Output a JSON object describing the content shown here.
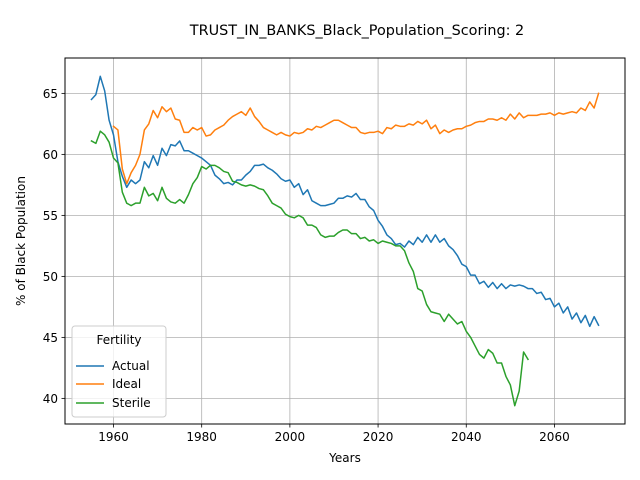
{
  "chart_data": {
    "type": "line",
    "title": "TRUST_IN_BANKS_Black_Population_Scoring: 2",
    "xlabel": "Years",
    "ylabel": "% of Black Population",
    "xlim": [
      1949,
      2076
    ],
    "ylim": [
      37.9,
      67.9
    ],
    "xticks": [
      1960,
      1980,
      2000,
      2020,
      2040,
      2060
    ],
    "yticks": [
      40,
      45,
      50,
      55,
      60,
      65
    ],
    "grid": true,
    "legend": {
      "title": "Fertility",
      "placement": "lower-left"
    },
    "series": [
      {
        "name": "Actual",
        "color": "#1f77b4",
        "x": [
          1955,
          1956,
          1957,
          1958,
          1959,
          1960,
          1961,
          1962,
          1963,
          1964,
          1965,
          1966,
          1967,
          1968,
          1969,
          1970,
          1971,
          1972,
          1973,
          1974,
          1975,
          1976,
          1977,
          1978,
          1979,
          1980,
          1981,
          1982,
          1983,
          1984,
          1985,
          1986,
          1987,
          1988,
          1989,
          1990,
          1991,
          1992,
          1993,
          1994,
          1995,
          1996,
          1997,
          1998,
          1999,
          2000,
          2001,
          2002,
          2003,
          2004,
          2005,
          2006,
          2007,
          2008,
          2009,
          2010,
          2011,
          2012,
          2013,
          2014,
          2015,
          2016,
          2017,
          2018,
          2019,
          2020,
          2021,
          2022,
          2023,
          2024,
          2025,
          2026,
          2027,
          2028,
          2029,
          2030,
          2031,
          2032,
          2033,
          2034,
          2035,
          2036,
          2037,
          2038,
          2039,
          2040,
          2041,
          2042,
          2043,
          2044,
          2045,
          2046,
          2047,
          2048,
          2049,
          2050,
          2051,
          2052,
          2053,
          2054,
          2055,
          2056,
          2057,
          2058,
          2059,
          2060,
          2061,
          2062,
          2063,
          2064,
          2065,
          2066,
          2067,
          2068,
          2069,
          2070
        ],
        "values": [
          64.5,
          64.9,
          66.4,
          65.2,
          62.8,
          61.6,
          59.4,
          58.2,
          57.3,
          57.9,
          57.6,
          57.9,
          59.4,
          58.9,
          59.9,
          59.1,
          60.5,
          59.9,
          60.8,
          60.7,
          61.1,
          60.3,
          60.3,
          60.1,
          59.9,
          59.7,
          59.4,
          59.1,
          58.3,
          58.0,
          57.6,
          57.7,
          57.5,
          57.9,
          57.9,
          58.3,
          58.6,
          59.1,
          59.1,
          59.2,
          58.9,
          58.7,
          58.4,
          58.0,
          57.8,
          57.9,
          57.3,
          57.6,
          56.7,
          57.1,
          56.2,
          56.0,
          55.8,
          55.8,
          55.9,
          56.0,
          56.4,
          56.4,
          56.6,
          56.5,
          56.8,
          56.3,
          56.3,
          55.7,
          55.4,
          54.6,
          54.1,
          53.4,
          53.1,
          52.6,
          52.7,
          52.4,
          52.9,
          52.6,
          53.2,
          52.8,
          53.4,
          52.8,
          53.4,
          52.8,
          53.1,
          52.5,
          52.2,
          51.7,
          51.0,
          50.8,
          50.1,
          50.1,
          49.4,
          49.6,
          49.1,
          49.5,
          49.0,
          49.4,
          49.0,
          49.3,
          49.2,
          49.3,
          49.2,
          49.0,
          49.0,
          48.6,
          48.7,
          48.1,
          48.2,
          47.5,
          47.8,
          47.0,
          47.5,
          46.5,
          47.0,
          46.2,
          46.8,
          45.9,
          46.7,
          46.0
        ]
      },
      {
        "name": "Ideal",
        "color": "#ff7f0e",
        "x": [
          1960,
          1961,
          1962,
          1963,
          1964,
          1965,
          1966,
          1967,
          1968,
          1969,
          1970,
          1971,
          1972,
          1973,
          1974,
          1975,
          1976,
          1977,
          1978,
          1979,
          1980,
          1981,
          1982,
          1983,
          1984,
          1985,
          1986,
          1987,
          1988,
          1989,
          1990,
          1991,
          1992,
          1993,
          1994,
          1995,
          1996,
          1997,
          1998,
          1999,
          2000,
          2001,
          2002,
          2003,
          2004,
          2005,
          2006,
          2007,
          2008,
          2009,
          2010,
          2011,
          2012,
          2013,
          2014,
          2015,
          2016,
          2017,
          2018,
          2019,
          2020,
          2021,
          2022,
          2023,
          2024,
          2025,
          2026,
          2027,
          2028,
          2029,
          2030,
          2031,
          2032,
          2033,
          2034,
          2035,
          2036,
          2037,
          2038,
          2039,
          2040,
          2041,
          2042,
          2043,
          2044,
          2045,
          2046,
          2047,
          2048,
          2049,
          2050,
          2051,
          2052,
          2053,
          2054,
          2055,
          2056,
          2057,
          2058,
          2059,
          2060,
          2061,
          2062,
          2063,
          2064,
          2065,
          2066,
          2067,
          2068,
          2069,
          2070
        ],
        "values": [
          62.3,
          62.0,
          58.8,
          57.6,
          58.5,
          59.1,
          60.0,
          62.0,
          62.5,
          63.6,
          63.0,
          63.9,
          63.5,
          63.8,
          62.9,
          62.8,
          61.8,
          61.8,
          62.2,
          62.0,
          62.2,
          61.5,
          61.6,
          62.0,
          62.2,
          62.4,
          62.8,
          63.1,
          63.3,
          63.5,
          63.2,
          63.8,
          63.1,
          62.7,
          62.2,
          62.0,
          61.8,
          61.6,
          61.8,
          61.6,
          61.5,
          61.8,
          61.7,
          61.8,
          62.1,
          62.0,
          62.3,
          62.2,
          62.4,
          62.6,
          62.8,
          62.8,
          62.6,
          62.4,
          62.2,
          62.2,
          61.8,
          61.7,
          61.8,
          61.8,
          61.9,
          61.7,
          62.2,
          62.1,
          62.4,
          62.3,
          62.3,
          62.5,
          62.4,
          62.7,
          62.5,
          62.8,
          62.1,
          62.4,
          61.7,
          62.0,
          61.8,
          62.0,
          62.1,
          62.1,
          62.3,
          62.4,
          62.6,
          62.7,
          62.7,
          62.9,
          62.9,
          62.8,
          63.0,
          62.8,
          63.3,
          62.9,
          63.4,
          63.0,
          63.2,
          63.2,
          63.2,
          63.3,
          63.3,
          63.4,
          63.2,
          63.4,
          63.3,
          63.4,
          63.5,
          63.4,
          63.8,
          63.6,
          64.3,
          63.8,
          65.0
        ]
      },
      {
        "name": "Sterile",
        "color": "#2ca02c",
        "x": [
          1955,
          1956,
          1957,
          1958,
          1959,
          1960,
          1961,
          1962,
          1963,
          1964,
          1965,
          1966,
          1967,
          1968,
          1969,
          1970,
          1971,
          1972,
          1973,
          1974,
          1975,
          1976,
          1977,
          1978,
          1979,
          1980,
          1981,
          1982,
          1983,
          1984,
          1985,
          1986,
          1987,
          1988,
          1989,
          1990,
          1991,
          1992,
          1993,
          1994,
          1995,
          1996,
          1997,
          1998,
          1999,
          2000,
          2001,
          2002,
          2003,
          2004,
          2005,
          2006,
          2007,
          2008,
          2009,
          2010,
          2011,
          2012,
          2013,
          2014,
          2015,
          2016,
          2017,
          2018,
          2019,
          2020,
          2021,
          2022,
          2023,
          2024,
          2025,
          2026,
          2027,
          2028,
          2029,
          2030,
          2031,
          2032,
          2033,
          2034,
          2035,
          2036,
          2037,
          2038,
          2039,
          2040,
          2041,
          2042,
          2043,
          2044,
          2045,
          2046,
          2047,
          2048,
          2049,
          2050,
          2051,
          2052,
          2053,
          2054
        ],
        "values": [
          61.1,
          60.9,
          61.9,
          61.6,
          61.0,
          59.7,
          59.3,
          56.9,
          56.0,
          55.8,
          56.0,
          56.0,
          57.3,
          56.6,
          56.8,
          56.2,
          57.3,
          56.4,
          56.1,
          56.0,
          56.3,
          56.0,
          56.7,
          57.6,
          58.1,
          59.0,
          58.8,
          59.1,
          59.1,
          58.9,
          58.6,
          58.5,
          57.8,
          57.7,
          57.5,
          57.4,
          57.5,
          57.4,
          57.2,
          57.1,
          56.6,
          56.0,
          55.8,
          55.6,
          55.1,
          54.9,
          54.8,
          55.0,
          54.8,
          54.2,
          54.2,
          54.0,
          53.4,
          53.2,
          53.3,
          53.3,
          53.6,
          53.8,
          53.8,
          53.5,
          53.5,
          53.1,
          53.2,
          52.9,
          53.0,
          52.7,
          52.9,
          52.8,
          52.7,
          52.5,
          52.5,
          52.1,
          51.1,
          50.4,
          49.0,
          48.8,
          47.7,
          47.1,
          47.0,
          46.9,
          46.3,
          46.9,
          46.5,
          46.1,
          46.3,
          45.5,
          45.0,
          44.3,
          43.6,
          43.3,
          44.0,
          43.7,
          42.9,
          42.9,
          41.8,
          41.1,
          39.4,
          40.6,
          43.8,
          43.2
        ]
      }
    ]
  }
}
